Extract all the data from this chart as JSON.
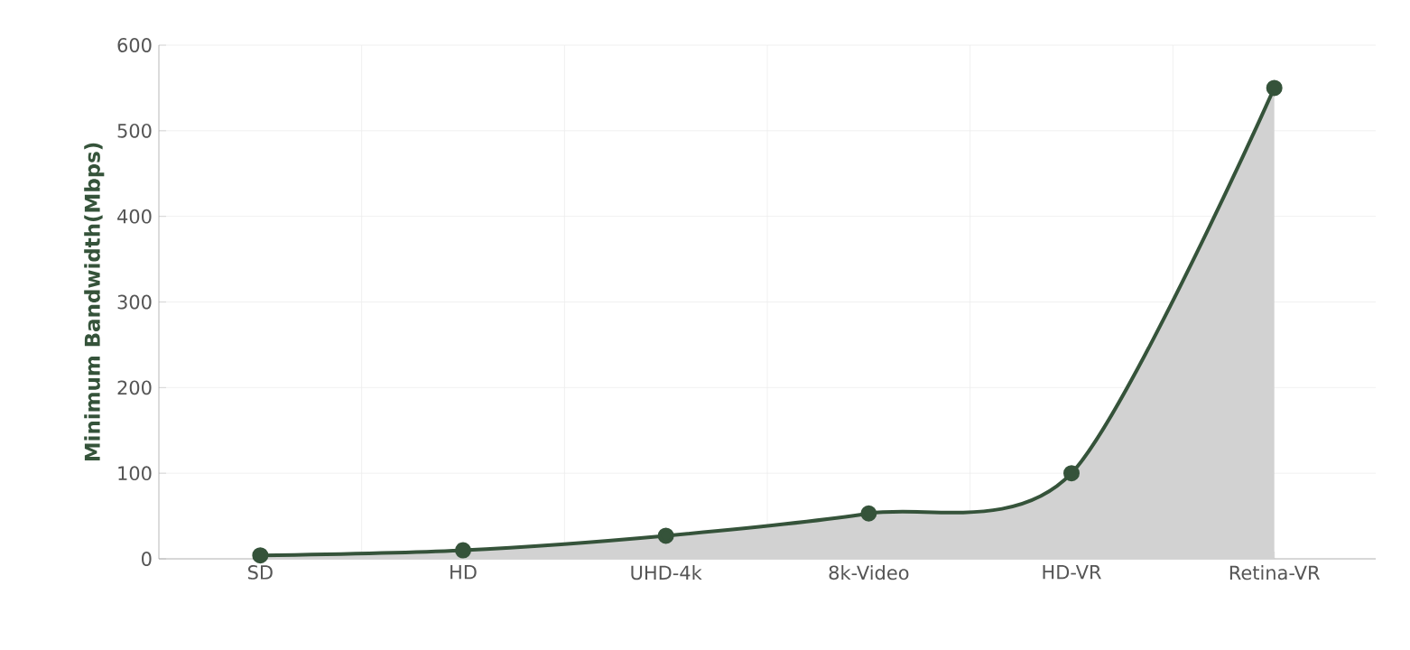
{
  "chart_data": {
    "type": "area",
    "ylabel": "Minimum Bandwidth(Mbps)",
    "categories": [
      "SD",
      "HD",
      "UHD-4k",
      "8k-Video",
      "HD-VR",
      "Retina-VR"
    ],
    "values": [
      4,
      10,
      27,
      53,
      100,
      550
    ],
    "color": "#35533a",
    "ylim": [
      0,
      600
    ],
    "yticks": [
      0,
      100,
      200,
      300,
      400,
      500,
      600
    ],
    "grid": true,
    "marker": "circle"
  }
}
